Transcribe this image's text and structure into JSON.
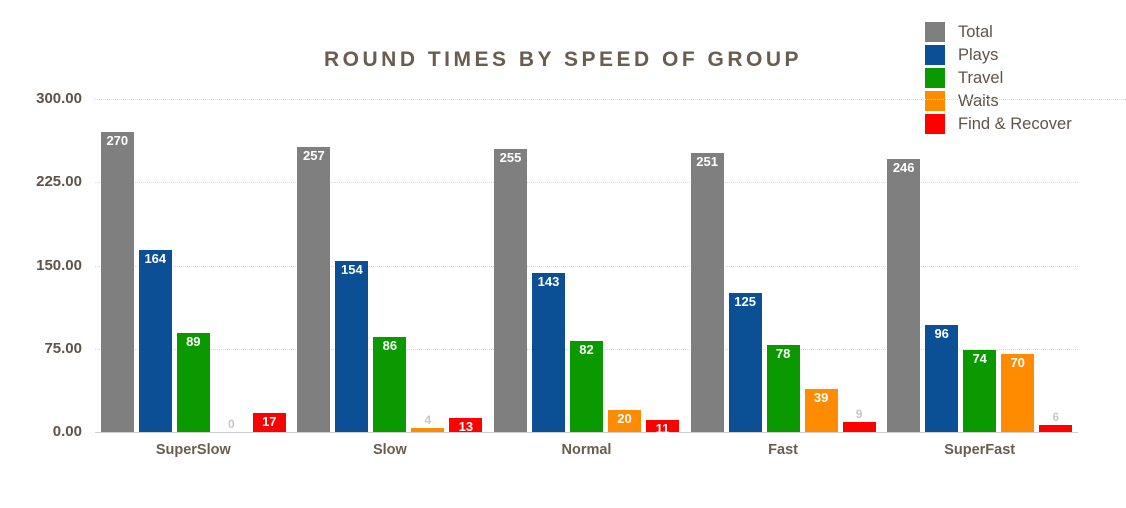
{
  "title": "ROUND TIMES BY SPEED OF GROUP",
  "chart_data": {
    "type": "bar",
    "title": "ROUND TIMES BY SPEED OF GROUP",
    "categories": [
      "SuperSlow",
      "Slow",
      "Normal",
      "Fast",
      "SuperFast"
    ],
    "series": [
      {
        "name": "Total",
        "color": "#7f7f7f",
        "values": [
          270,
          257,
          255,
          251,
          246
        ]
      },
      {
        "name": "Plays",
        "color": "#0b4f94",
        "values": [
          164,
          154,
          143,
          125,
          96
        ]
      },
      {
        "name": "Travel",
        "color": "#0a9a00",
        "values": [
          89,
          86,
          82,
          78,
          74
        ]
      },
      {
        "name": "Waits",
        "color": "#ff8c00",
        "values": [
          0,
          4,
          20,
          39,
          70
        ]
      },
      {
        "name": "Find & Recover",
        "color": "#ff0000",
        "values": [
          17,
          13,
          11,
          9,
          6
        ]
      }
    ],
    "xlabel": "",
    "ylabel": "",
    "ylim": [
      0,
      300
    ],
    "yticks": [
      "0.00",
      "75.00",
      "150.00",
      "225.00",
      "300.00"
    ],
    "grid": "horizontal-dotted",
    "legend_position": "top-right",
    "value_labels": true
  },
  "colors": {
    "background": "#ffffff",
    "title_text": "#6b5d4d",
    "axis_text": "#5f5348",
    "category_text": "#6b5d4d",
    "gridline": "#d9d9d9",
    "baseline": "#cfcfcf",
    "value_label_inside": "#ffffff",
    "value_label_outside": "#c9c9c9"
  }
}
